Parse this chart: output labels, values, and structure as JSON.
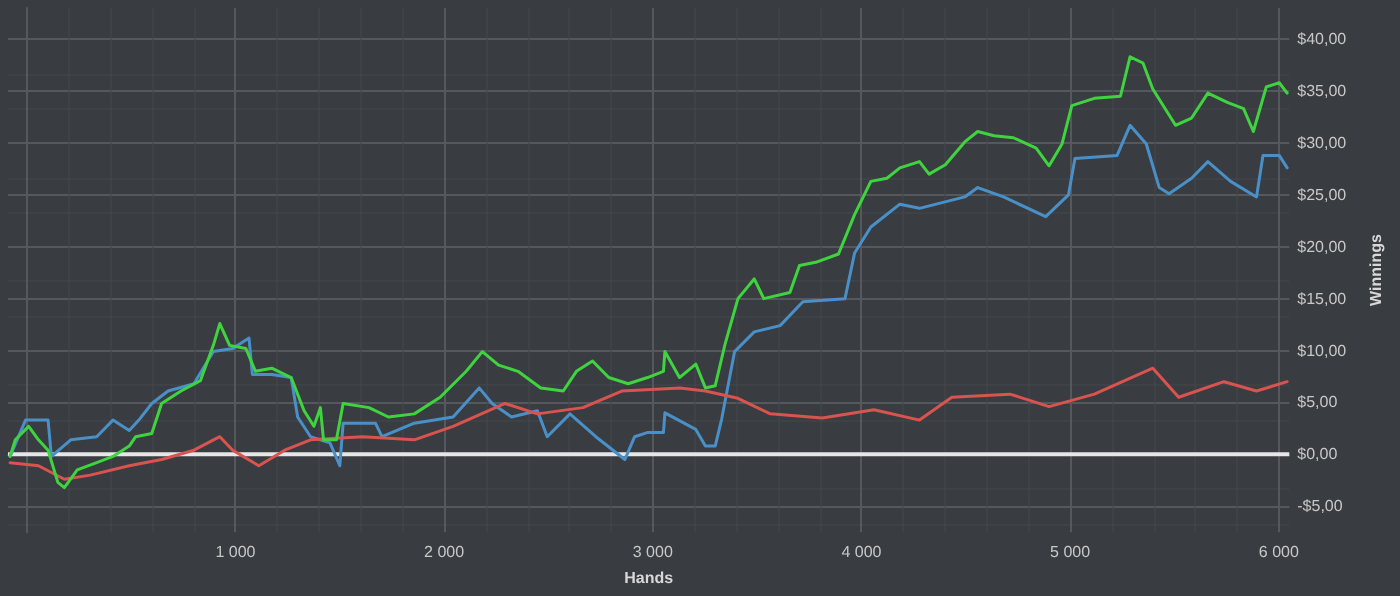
{
  "chart_data": {
    "type": "line",
    "xlabel": "Hands",
    "ylabel": "Winnings",
    "xlim": [
      -90,
      6050
    ],
    "ylim": [
      -7.5,
      43
    ],
    "xticks": [
      {
        "value": 1000,
        "label": "1 000"
      },
      {
        "value": 2000,
        "label": "2 000"
      },
      {
        "value": 3000,
        "label": "3 000"
      },
      {
        "value": 4000,
        "label": "4 000"
      },
      {
        "value": 5000,
        "label": "5 000"
      },
      {
        "value": 6000,
        "label": "6 000"
      }
    ],
    "yticks": [
      {
        "value": -5,
        "label": "-$5,00"
      },
      {
        "value": 0,
        "label": "$0,00"
      },
      {
        "value": 5,
        "label": "$5,00"
      },
      {
        "value": 10,
        "label": "$10,00"
      },
      {
        "value": 15,
        "label": "$15,00"
      },
      {
        "value": 20,
        "label": "$20,00"
      },
      {
        "value": 25,
        "label": "$25,00"
      },
      {
        "value": 30,
        "label": "$30,00"
      },
      {
        "value": 35,
        "label": "$35,00"
      },
      {
        "value": 40,
        "label": "$40,00"
      }
    ],
    "grid": true,
    "marker": "none",
    "line_style": "solid",
    "ref_lines": [
      {
        "axis": "y",
        "value": 0,
        "label": null,
        "color": "#e6e6e6"
      }
    ],
    "series": [
      {
        "color": "#4a90c8",
        "x": [
          -80,
          -6,
          102,
          118,
          211,
          335,
          413,
          491,
          537,
          599,
          677,
          801,
          894,
          987,
          1065,
          1081,
          1174,
          1267,
          1298,
          1360,
          1453,
          1500,
          1516,
          1671,
          1702,
          1857,
          2043,
          2168,
          2230,
          2323,
          2447,
          2494,
          2603,
          2727,
          2866,
          2913,
          2973,
          3051,
          3058,
          3206,
          3252,
          3299,
          3330,
          3392,
          3486,
          3610,
          3719,
          3921,
          3967,
          4045,
          4184,
          4278,
          4495,
          4557,
          4681,
          4883,
          4992,
          5023,
          5225,
          5287,
          5365,
          5427,
          5474,
          5582,
          5660,
          5769,
          5893,
          5924,
          6002,
          6040
        ],
        "values": [
          -0.2,
          3.3,
          3.3,
          -0.2,
          1.4,
          1.7,
          3.3,
          2.3,
          3.3,
          4.9,
          6.1,
          6.8,
          9.9,
          10.2,
          11.2,
          7.7,
          7.7,
          7.4,
          3.6,
          1.7,
          1.1,
          -1.1,
          3.0,
          3.0,
          1.7,
          3.0,
          3.6,
          6.4,
          4.9,
          3.6,
          4.2,
          1.7,
          3.9,
          1.7,
          -0.5,
          1.7,
          2.1,
          2.1,
          4.0,
          2.4,
          0.8,
          0.8,
          3.4,
          9.9,
          11.8,
          12.4,
          14.7,
          15.0,
          19.4,
          21.9,
          24.1,
          23.7,
          24.8,
          25.7,
          24.8,
          22.9,
          25.0,
          28.5,
          28.8,
          31.7,
          29.9,
          25.7,
          25.1,
          26.6,
          28.2,
          26.3,
          24.8,
          28.8,
          28.8,
          27.6
        ]
      },
      {
        "color": "#d9534f",
        "x": [
          -80,
          56,
          180,
          304,
          491,
          646,
          801,
          925,
          987,
          1112,
          1236,
          1360,
          1609,
          1857,
          2043,
          2292,
          2447,
          2665,
          2851,
          3130,
          3252,
          3408,
          3563,
          3812,
          4060,
          4278,
          4433,
          4712,
          4899,
          5116,
          5396,
          5520,
          5737,
          5893,
          6040
        ],
        "values": [
          -0.8,
          -1.1,
          -2.4,
          -2.0,
          -1.1,
          -0.5,
          0.4,
          1.7,
          0.4,
          -1.1,
          0.4,
          1.4,
          1.7,
          1.4,
          2.7,
          4.9,
          3.9,
          4.5,
          6.1,
          6.4,
          6.1,
          5.4,
          3.9,
          3.5,
          4.3,
          3.3,
          5.5,
          5.8,
          4.6,
          5.8,
          8.3,
          5.5,
          7.0,
          6.1,
          7.0
        ]
      },
      {
        "color": "#3fd43f",
        "x": [
          -80,
          -55,
          9,
          56,
          102,
          149,
          180,
          242,
          335,
          413,
          491,
          522,
          599,
          646,
          739,
          832,
          894,
          925,
          972,
          1050,
          1096,
          1174,
          1267,
          1329,
          1376,
          1407,
          1422,
          1484,
          1516,
          1640,
          1733,
          1857,
          1981,
          2106,
          2183,
          2261,
          2354,
          2463,
          2571,
          2634,
          2711,
          2789,
          2882,
          2975,
          3051,
          3058,
          3128,
          3206,
          3252,
          3299,
          3346,
          3408,
          3486,
          3532,
          3657,
          3703,
          3781,
          3890,
          3967,
          4045,
          4122,
          4184,
          4278,
          4324,
          4402,
          4495,
          4557,
          4635,
          4728,
          4837,
          4899,
          4961,
          5008,
          5116,
          5241,
          5287,
          5349,
          5396,
          5505,
          5582,
          5660,
          5753,
          5831,
          5878,
          5940,
          6002,
          6040
        ],
        "values": [
          -0.2,
          1.4,
          2.7,
          1.4,
          0.4,
          -2.7,
          -3.2,
          -1.5,
          -0.8,
          -0.2,
          0.8,
          1.7,
          2.0,
          4.9,
          6.1,
          7.1,
          10.5,
          12.6,
          10.5,
          10.2,
          8.0,
          8.3,
          7.4,
          4.2,
          2.7,
          4.5,
          1.4,
          1.4,
          4.9,
          4.5,
          3.6,
          3.9,
          5.5,
          8.0,
          9.9,
          8.6,
          8.0,
          6.4,
          6.1,
          8.0,
          9.0,
          7.4,
          6.8,
          7.4,
          8.0,
          9.9,
          7.4,
          8.7,
          6.4,
          6.6,
          10.6,
          15.0,
          16.9,
          15.0,
          15.6,
          18.2,
          18.5,
          19.3,
          23.1,
          26.3,
          26.6,
          27.6,
          28.2,
          27.0,
          27.9,
          30.1,
          31.1,
          30.7,
          30.5,
          29.5,
          27.8,
          29.9,
          33.6,
          34.3,
          34.5,
          38.3,
          37.7,
          35.2,
          31.7,
          32.4,
          34.8,
          33.9,
          33.3,
          31.1,
          35.4,
          35.8,
          34.8
        ]
      }
    ]
  }
}
